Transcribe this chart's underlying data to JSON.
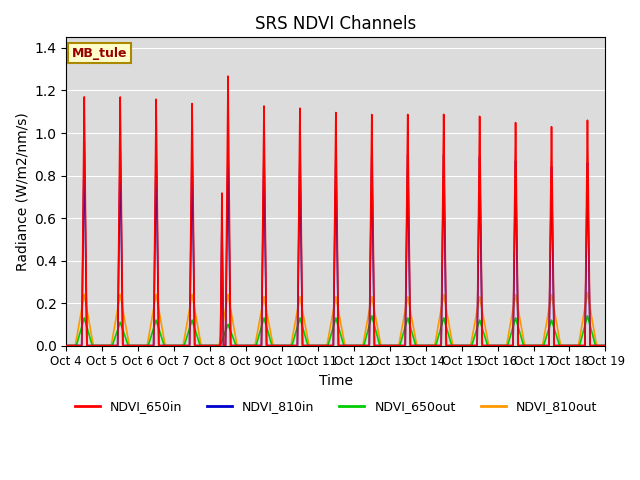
{
  "title": "SRS NDVI Channels",
  "xlabel": "Time",
  "ylabel": "Radiance (W/m2/nm/s)",
  "annotation_text": "MB_tule",
  "ylim": [
    0,
    1.45
  ],
  "xlim_days": [
    0,
    15
  ],
  "tick_labels": [
    "Oct 4",
    "Oct 5",
    "Oct 6",
    "Oct 7",
    "Oct 8",
    "Oct 9",
    "Oct 10",
    "Oct 11",
    "Oct 12",
    "Oct 13",
    "Oct 14",
    "Oct 15",
    "Oct 16",
    "Oct 17",
    "Oct 18",
    "Oct 19"
  ],
  "colors": {
    "NDVI_650in": "#ff0000",
    "NDVI_810in": "#0000cc",
    "NDVI_650out": "#00cc00",
    "NDVI_810out": "#ff9900"
  },
  "peak_650in": [
    1.17,
    1.17,
    1.16,
    1.14,
    1.27,
    1.13,
    1.12,
    1.1,
    1.09,
    1.09,
    1.09,
    1.08,
    1.05,
    1.03,
    1.06
  ],
  "peak_810in": [
    0.96,
    0.94,
    0.93,
    0.92,
    0.93,
    0.92,
    0.91,
    0.9,
    0.9,
    0.9,
    0.9,
    0.89,
    0.87,
    0.84,
    0.86
  ],
  "peak_650out": [
    0.13,
    0.11,
    0.12,
    0.12,
    0.1,
    0.13,
    0.13,
    0.13,
    0.14,
    0.13,
    0.13,
    0.12,
    0.13,
    0.12,
    0.14
  ],
  "peak_810out": [
    0.24,
    0.24,
    0.24,
    0.24,
    0.24,
    0.23,
    0.23,
    0.23,
    0.23,
    0.23,
    0.24,
    0.23,
    0.24,
    0.24,
    0.25
  ],
  "special_oct8_650in_pre": 0.72,
  "special_oct8_810in_pre": 0.58,
  "background_color": "#dcdcdc",
  "title_fontsize": 12,
  "axis_label_fontsize": 10,
  "tick_fontsize": 8.5,
  "linewidth_in": 1.2,
  "linewidth_out": 1.2
}
